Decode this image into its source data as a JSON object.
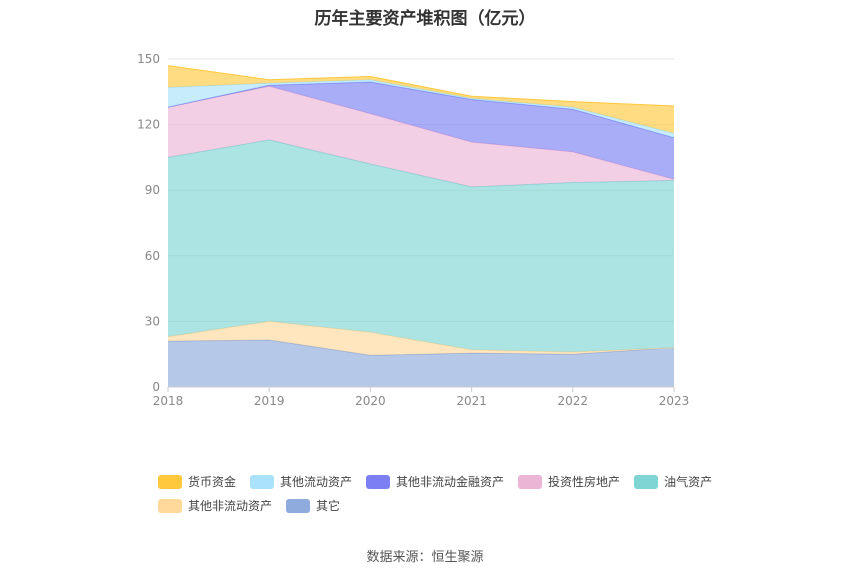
{
  "title": "历年主要资产堆积图（亿元）",
  "source": "数据来源：恒生聚源",
  "chart_data": {
    "type": "area",
    "stacked": true,
    "categories": [
      "2018",
      "2019",
      "2020",
      "2021",
      "2022",
      "2023"
    ],
    "ylim": [
      0,
      150
    ],
    "yticks": [
      "0",
      "30",
      "60",
      "90",
      "120",
      "150"
    ],
    "grid": true,
    "legend_position": "bottom",
    "series": [
      {
        "name": "其它",
        "color": "#8faadc",
        "values": [
          21,
          21.5,
          14.5,
          15.5,
          15,
          18
        ]
      },
      {
        "name": "其他非流动资产",
        "color": "#ffd89b",
        "values": [
          2,
          8.5,
          10.5,
          1.5,
          1,
          0
        ]
      },
      {
        "name": "油气资产",
        "color": "#7fd4d4",
        "values": [
          82,
          83,
          77,
          74.5,
          77.5,
          76.5
        ]
      },
      {
        "name": "投资性房地产",
        "color": "#ebb5d6",
        "values": [
          23,
          24.5,
          23,
          20.5,
          14,
          0.5
        ]
      },
      {
        "name": "其他非流动金融资产",
        "color": "#7b7ff2",
        "values": [
          0,
          0.5,
          14.5,
          19.5,
          19.5,
          19
        ]
      },
      {
        "name": "其他流动资产",
        "color": "#a9e2fa",
        "values": [
          9,
          1,
          1,
          0.5,
          1,
          2
        ]
      },
      {
        "name": "货币资金",
        "color": "#ffc83d",
        "values": [
          10,
          1.5,
          1.5,
          1,
          2.5,
          12.5
        ]
      }
    ],
    "legend_order": [
      "货币资金",
      "其他流动资产",
      "其他非流动金融资产",
      "投资性房地产",
      "油气资产",
      "其他非流动资产",
      "其它"
    ]
  }
}
